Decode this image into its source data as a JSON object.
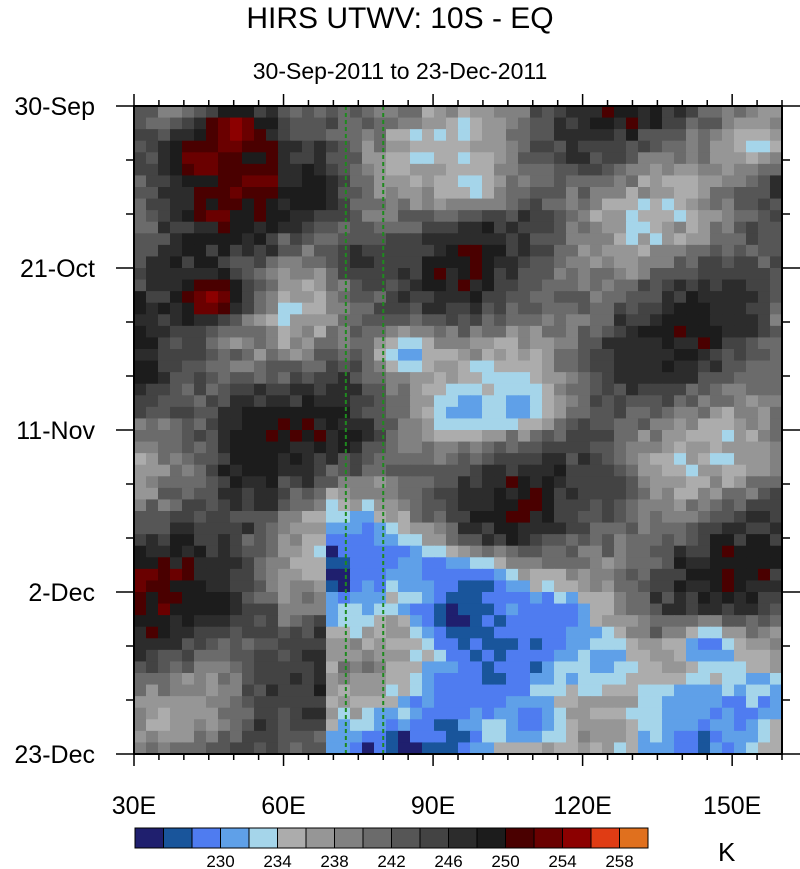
{
  "chart_data": {
    "type": "heatmap",
    "title": "HIRS UTWV: 10S - EQ",
    "subtitle": "30-Sep-2011 to 23-Dec-2011",
    "xlabel": "",
    "ylabel": "",
    "xlim": [
      30,
      160
    ],
    "ylim_days": [
      0,
      84
    ],
    "x_ticks": [
      {
        "value": 30,
        "label": "30E"
      },
      {
        "value": 60,
        "label": "60E"
      },
      {
        "value": 90,
        "label": "90E"
      },
      {
        "value": 120,
        "label": "120E"
      },
      {
        "value": 150,
        "label": "150E"
      }
    ],
    "y_ticks": [
      {
        "day": 0,
        "label": "30-Sep"
      },
      {
        "day": 21,
        "label": "21-Oct"
      },
      {
        "day": 42,
        "label": "11-Nov"
      },
      {
        "day": 63,
        "label": "2-Dec"
      },
      {
        "day": 84,
        "label": "23-Dec"
      }
    ],
    "reference_lines_lon": [
      72.5,
      80
    ],
    "reference_line_color": "#1e8a1e",
    "colorbar": {
      "unit": "K",
      "level_labels": [
        {
          "index": 2,
          "label": "230"
        },
        {
          "index": 4,
          "label": "234"
        },
        {
          "index": 6,
          "label": "238"
        },
        {
          "index": 8,
          "label": "242"
        },
        {
          "index": 10,
          "label": "246"
        },
        {
          "index": 12,
          "label": "250"
        },
        {
          "index": 14,
          "label": "254"
        },
        {
          "index": 16,
          "label": "258"
        }
      ],
      "colors": [
        "#1f1f6e",
        "#19559b",
        "#4f7cf0",
        "#5fa0e8",
        "#a5d5ea",
        "#acacac",
        "#969696",
        "#818181",
        "#6b6b6b",
        "#565656",
        "#434343",
        "#2c2c2c",
        "#1c1c1c",
        "#4a0000",
        "#6a0000",
        "#8c0000",
        "#e03c14",
        "#e0701e"
      ]
    },
    "features": [
      {
        "lon": 50,
        "day": 3,
        "level": 15
      },
      {
        "lon": 43,
        "day": 7,
        "level": 14
      },
      {
        "lon": 46,
        "day": 25,
        "level": 15
      },
      {
        "lon": 85,
        "day": 32,
        "level": 3
      },
      {
        "lon": 95,
        "day": 40,
        "level": 3
      },
      {
        "lon": 108,
        "day": 39,
        "level": 3
      },
      {
        "lon": 80,
        "day": 58,
        "level": 2
      },
      {
        "lon": 90,
        "day": 60,
        "level": 2
      },
      {
        "lon": 100,
        "day": 62,
        "level": 1
      },
      {
        "lon": 94,
        "day": 66,
        "level": 0
      },
      {
        "lon": 112,
        "day": 67,
        "level": 2
      },
      {
        "lon": 95,
        "day": 75,
        "level": 2
      },
      {
        "lon": 110,
        "day": 80,
        "level": 2
      },
      {
        "lon": 125,
        "day": 72,
        "level": 3
      },
      {
        "lon": 145,
        "day": 70,
        "level": 2
      },
      {
        "lon": 140,
        "day": 78,
        "level": 3
      },
      {
        "lon": 155,
        "day": 5,
        "level": 4
      },
      {
        "lon": 98,
        "day": 10,
        "level": 4
      },
      {
        "lon": 55,
        "day": 45,
        "level": 12
      },
      {
        "lon": 45,
        "day": 65,
        "level": 12
      },
      {
        "lon": 65,
        "day": 12,
        "level": 12
      },
      {
        "lon": 130,
        "day": 33,
        "level": 11
      },
      {
        "lon": 150,
        "day": 25,
        "level": 11
      },
      {
        "lon": 75,
        "day": 20,
        "level": 11
      },
      {
        "lon": 125,
        "day": 50,
        "level": 10
      }
    ]
  }
}
